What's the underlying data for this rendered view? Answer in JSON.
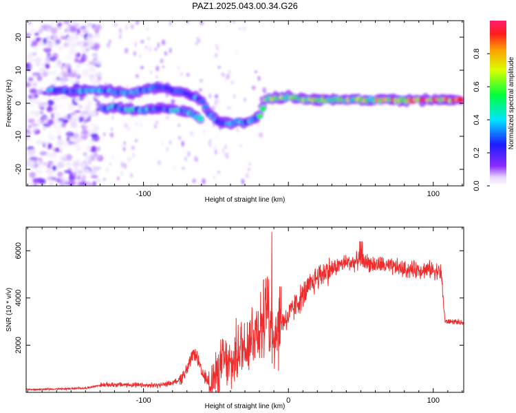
{
  "title": "PAZ1.2025.043.00.34.G26",
  "colors": {
    "snr_line": "#ef2b2b",
    "background": "#ffffff",
    "axis": "#000000"
  },
  "chart_data": [
    {
      "type": "heatmap",
      "xlabel": "Height of straight line (km)",
      "ylabel": "Frequency (Hz)",
      "xlim": [
        -181,
        121
      ],
      "ylim": [
        -25,
        25
      ],
      "xticks": [
        -100,
        0,
        100
      ],
      "xtick_labels": [
        "-100",
        "",
        "100"
      ],
      "yticks": [
        -20,
        -10,
        0,
        10,
        20
      ],
      "ytick_labels": [
        "-20",
        "-10",
        "0",
        "10",
        "20"
      ],
      "colorbar": {
        "label": "Normalized spectral amplitude",
        "range": [
          0,
          1
        ],
        "ticks": [
          0,
          0.2,
          0.4,
          0.6,
          0.8
        ],
        "tick_labels": [
          "0.0",
          "0.2",
          "0.4",
          "0.6",
          "0.8"
        ],
        "colormap": "rainbow"
      },
      "ridge": {
        "x": [
          -160,
          -150,
          -140,
          -130,
          -120,
          -110,
          -100,
          -90,
          -80,
          -70,
          -60,
          -55,
          -50,
          -45,
          -40,
          -35,
          -30,
          -25,
          -20,
          -15,
          -10,
          0,
          10,
          20,
          30,
          40,
          50,
          60,
          70,
          80,
          90,
          100,
          110,
          120
        ],
        "y": [
          4,
          3.5,
          4,
          4,
          3.5,
          3,
          4,
          5,
          4,
          3,
          1,
          -3,
          -5,
          -6,
          -6,
          -5.5,
          -6,
          -5,
          -4,
          1.5,
          1.5,
          2,
          1.2,
          1,
          1,
          1,
          1,
          1,
          1,
          1,
          1,
          1,
          1,
          1
        ]
      },
      "secondary_ridge": {
        "x": [
          -130,
          -120,
          -110,
          -100,
          -90,
          -80,
          -70,
          -60
        ],
        "y": [
          -2,
          -1,
          -2,
          -2,
          -1.5,
          -2,
          -2.5,
          -5
        ]
      },
      "noise_region_x": [
        -181,
        -130
      ]
    },
    {
      "type": "line",
      "xlabel": "Height of straight line (km)",
      "ylabel": "SNR (10 * v/v)",
      "xlim": [
        -181,
        121
      ],
      "ylim": [
        0,
        7000
      ],
      "xticks": [
        -100,
        0,
        100
      ],
      "xtick_labels": [
        "-100",
        "0",
        "100"
      ],
      "yticks": [
        2000,
        4000,
        6000
      ],
      "ytick_labels": [
        "2000",
        "4000",
        "6000"
      ],
      "series": [
        {
          "x": [
            -181,
            -170,
            -160,
            -150,
            -140,
            -130,
            -120,
            -110,
            -100,
            -90,
            -80,
            -75,
            -70,
            -65,
            -62,
            -60,
            -55,
            -50,
            -45,
            -40,
            -35,
            -30,
            -25,
            -20,
            -15,
            -12,
            -10,
            -5,
            0,
            5,
            10,
            15,
            20,
            25,
            30,
            35,
            40,
            45,
            50,
            55,
            60,
            65,
            70,
            75,
            80,
            85,
            90,
            95,
            100,
            105,
            106,
            108,
            110,
            115,
            121
          ],
          "y": [
            120,
            130,
            140,
            160,
            180,
            300,
            330,
            320,
            290,
            300,
            400,
            550,
            950,
            1700,
            1300,
            800,
            450,
            700,
            1400,
            1000,
            1800,
            2000,
            2500,
            2800,
            3200,
            3000,
            2600,
            3000,
            3200,
            3700,
            4100,
            4500,
            4900,
            5100,
            5200,
            5400,
            5500,
            5500,
            5600,
            5500,
            5400,
            5400,
            5300,
            5300,
            5200,
            5200,
            5200,
            5200,
            5200,
            5100,
            4700,
            3000,
            3000,
            3000,
            2900
          ]
        }
      ]
    }
  ]
}
